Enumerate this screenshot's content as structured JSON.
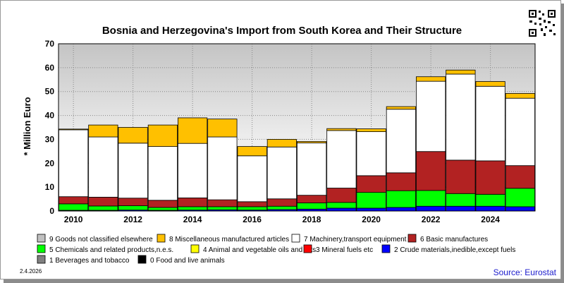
{
  "chart_data": {
    "type": "bar",
    "stacked": true,
    "title": "Bosnia and Herzegovina's Import from South Korea and Their Structure",
    "ylabel": "* Million Euro",
    "ylim": [
      0,
      70
    ],
    "yticks": [
      0,
      10,
      20,
      30,
      40,
      50,
      60,
      70
    ],
    "x": [
      2010,
      2011,
      2012,
      2013,
      2014,
      2015,
      2016,
      2017,
      2018,
      2019,
      2020,
      2021,
      2022,
      2023,
      2024,
      2025
    ],
    "xtick_labels": [
      "2010",
      "2012",
      "2014",
      "2016",
      "2018",
      "2020",
      "2022",
      "2024"
    ],
    "grid": true,
    "legend_position": "bottom",
    "series": [
      {
        "name": "0 Food and live animals",
        "color": "#000000",
        "values": [
          0,
          0,
          0,
          0,
          0,
          0,
          0,
          0,
          0,
          0,
          0,
          0,
          0,
          0,
          0,
          0
        ]
      },
      {
        "name": "1 Beverages and tobacco",
        "color": "#808080",
        "values": [
          0,
          0,
          0,
          0,
          0,
          0,
          0,
          0,
          0,
          0,
          0,
          0,
          0,
          0,
          0,
          0
        ]
      },
      {
        "name": "2 Crude materials,inedible,except fuels",
        "color": "#0000ff",
        "values": [
          0.3,
          0.3,
          0.4,
          0.3,
          0.4,
          0.5,
          0.4,
          0.6,
          0.8,
          1.2,
          1.2,
          1.5,
          2.0,
          2.0,
          2.0,
          1.8
        ]
      },
      {
        "name": "3 Mineral fuels etc",
        "color": "#ff0000",
        "values": [
          0,
          0,
          0,
          0,
          0,
          0,
          0,
          0,
          0,
          0,
          0,
          0,
          0,
          0,
          0,
          0
        ]
      },
      {
        "name": "4 Animal and vegetable oils and fats",
        "color": "#ffff00",
        "values": [
          0,
          0,
          0,
          0,
          0,
          0,
          0,
          0,
          0,
          0,
          0,
          0,
          0,
          0,
          0,
          0
        ]
      },
      {
        "name": "5 Chemicals and related products,n.e.s.",
        "color": "#00ff00",
        "values": [
          2.7,
          1.8,
          1.8,
          1.2,
          1.4,
          1.3,
          1.4,
          1.4,
          2.6,
          2.4,
          6.6,
          7.0,
          6.6,
          5.3,
          5.0,
          7.7
        ]
      },
      {
        "name": "6 Basic manufactures",
        "color": "#b22222",
        "values": [
          3.0,
          3.7,
          3.2,
          3.0,
          3.7,
          2.9,
          2.1,
          3.1,
          3.2,
          6.0,
          7.0,
          7.5,
          16.3,
          14.0,
          14.0,
          9.5
        ]
      },
      {
        "name": "7 Machinery,transport equipment",
        "color": "#ffffff",
        "values": [
          28.0,
          25.2,
          23.0,
          22.5,
          22.8,
          26.3,
          19.2,
          21.7,
          21.9,
          24.1,
          18.4,
          26.6,
          29.4,
          36.0,
          31.2,
          28.2
        ]
      },
      {
        "name": "8 Miscellaneous manufactured articles",
        "color": "#ffc000",
        "values": [
          0.3,
          5.0,
          6.6,
          9.0,
          10.7,
          7.5,
          3.9,
          3.2,
          0.6,
          0.8,
          1.2,
          1.1,
          1.9,
          1.7,
          2.0,
          2.0
        ]
      },
      {
        "name": "9 Goods not classified elsewhere",
        "color": "#c0c0c0",
        "values": [
          0,
          0,
          0,
          0,
          0,
          0,
          0,
          0,
          0,
          0,
          0,
          0,
          0,
          0,
          0,
          0
        ]
      }
    ],
    "legend_order": [
      9,
      8,
      7,
      6,
      5,
      4,
      3,
      2,
      1,
      0
    ]
  },
  "footer": {
    "date": "2.4.2026",
    "source": "Source: Eurostat"
  }
}
